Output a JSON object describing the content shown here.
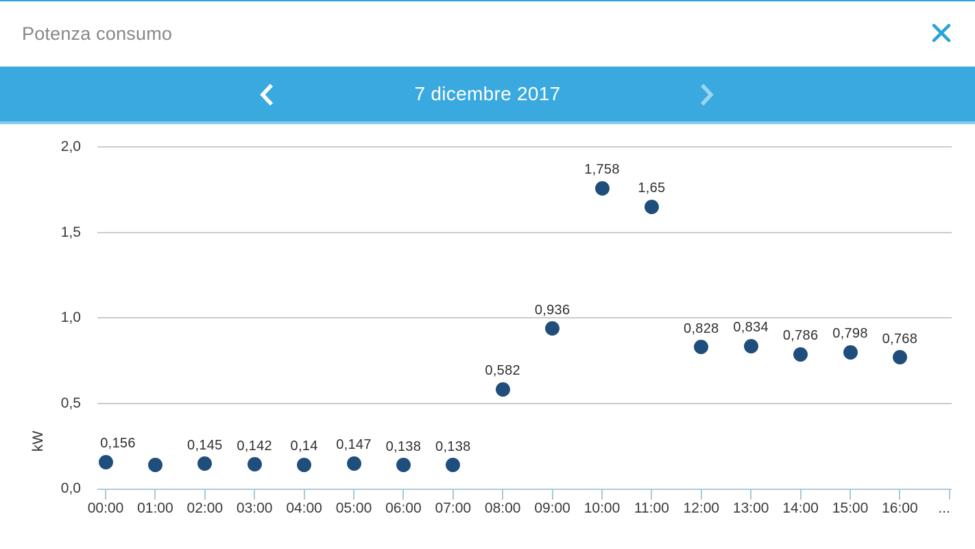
{
  "dialog": {
    "title": "Potenza consumo",
    "close_icon": "x-close"
  },
  "date_nav": {
    "date_label": "7 dicembre 2017",
    "prev_icon": "chevron-left",
    "next_icon": "chevron-right"
  },
  "colors": {
    "accent_blue": "#3aa9e0",
    "close_icon_blue": "#2ba2da",
    "point_navy": "#1f4e7c",
    "gridline_gray": "#cccccc",
    "axis_light_blue": "#b1cadb",
    "title_gray": "#85888b",
    "text_dark": "#333333"
  },
  "chart_data": {
    "type": "scatter",
    "title": "Potenza consumo",
    "xlabel": "",
    "ylabel": "kW",
    "ylim": [
      0,
      2.0
    ],
    "grid": true,
    "y_ticks": [
      {
        "value": 0.0,
        "label": "0,0"
      },
      {
        "value": 0.5,
        "label": "0,5"
      },
      {
        "value": 1.0,
        "label": "1,0"
      },
      {
        "value": 1.5,
        "label": "1,5"
      },
      {
        "value": 2.0,
        "label": "2,0"
      }
    ],
    "categories": [
      "00:00",
      "01:00",
      "02:00",
      "03:00",
      "04:00",
      "05:00",
      "06:00",
      "07:00",
      "08:00",
      "09:00",
      "10:00",
      "11:00",
      "12:00",
      "13:00",
      "14:00",
      "15:00",
      "16:00"
    ],
    "x_overflow_label": "...",
    "points": [
      {
        "time": "00:00",
        "value": 0.156,
        "label": "0,156"
      },
      {
        "time": "01:00",
        "value": 0.14,
        "label": ""
      },
      {
        "time": "02:00",
        "value": 0.145,
        "label": "0,145"
      },
      {
        "time": "03:00",
        "value": 0.142,
        "label": "0,142"
      },
      {
        "time": "04:00",
        "value": 0.14,
        "label": "0,14"
      },
      {
        "time": "05:00",
        "value": 0.147,
        "label": "0,147"
      },
      {
        "time": "06:00",
        "value": 0.138,
        "label": "0,138"
      },
      {
        "time": "07:00",
        "value": 0.138,
        "label": "0,138"
      },
      {
        "time": "08:00",
        "value": 0.582,
        "label": "0,582"
      },
      {
        "time": "09:00",
        "value": 0.936,
        "label": "0,936"
      },
      {
        "time": "10:00",
        "value": 1.758,
        "label": "1,758"
      },
      {
        "time": "11:00",
        "value": 1.65,
        "label": "1,65"
      },
      {
        "time": "12:00",
        "value": 0.828,
        "label": "0,828"
      },
      {
        "time": "13:00",
        "value": 0.834,
        "label": "0,834"
      },
      {
        "time": "14:00",
        "value": 0.786,
        "label": "0,786"
      },
      {
        "time": "15:00",
        "value": 0.798,
        "label": "0,798"
      },
      {
        "time": "16:00",
        "value": 0.768,
        "label": "0,768"
      }
    ]
  }
}
